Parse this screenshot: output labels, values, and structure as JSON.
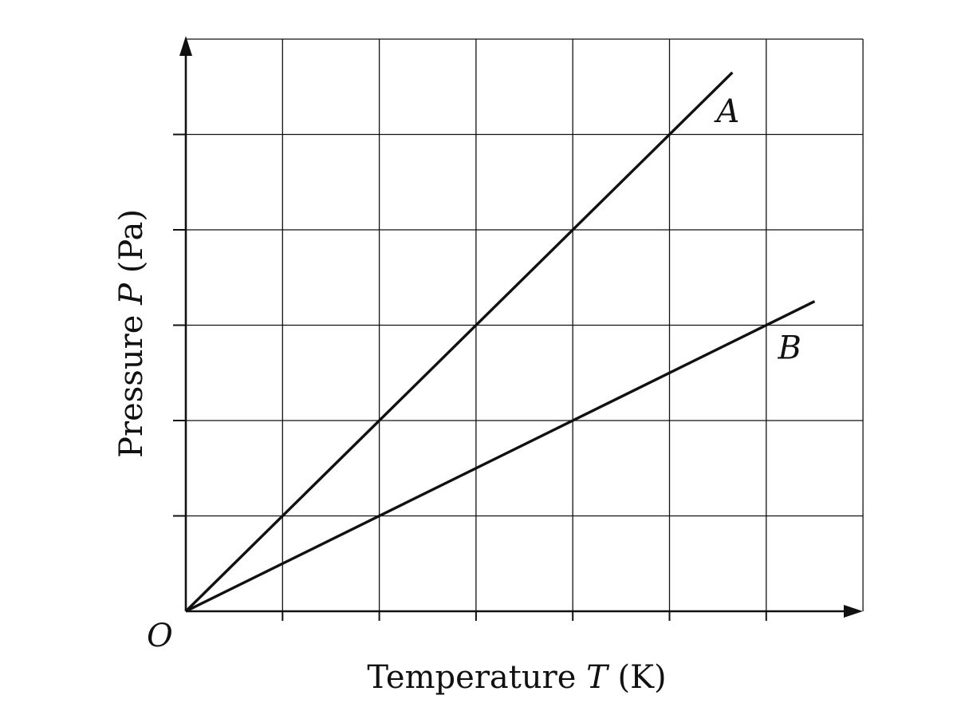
{
  "chart_data": {
    "type": "line",
    "xlabel": {
      "prefix": "Temperature ",
      "symbol": "T",
      "unit": " (K)"
    },
    "ylabel": {
      "prefix": "Pressure ",
      "symbol": "P",
      "unit": " (Pa)"
    },
    "origin_label": "O",
    "xlim": [
      0,
      7
    ],
    "ylim": [
      0,
      6
    ],
    "x_ticks": [
      1,
      2,
      3,
      4,
      5,
      6
    ],
    "y_ticks": [
      1,
      2,
      3,
      4,
      5
    ],
    "grid": true,
    "x_grid": [
      1,
      2,
      3,
      4,
      5,
      6,
      7
    ],
    "y_grid": [
      1,
      2,
      3,
      4,
      5,
      6
    ],
    "series": [
      {
        "name": "A",
        "x": [
          0,
          5.65
        ],
        "y": [
          0,
          5.65
        ]
      },
      {
        "name": "B",
        "x": [
          0,
          6.5
        ],
        "y": [
          0,
          3.25
        ]
      }
    ]
  }
}
